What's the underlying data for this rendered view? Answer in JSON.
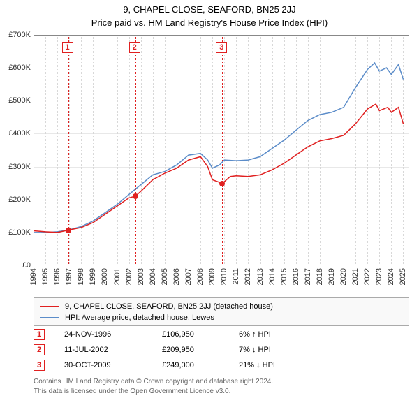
{
  "title": "9, CHAPEL CLOSE, SEAFORD, BN25 2JJ",
  "subtitle": "Price paid vs. HM Land Registry's House Price Index (HPI)",
  "chart": {
    "type": "line",
    "background_color": "#ffffff",
    "grid_color": "#e8e8e8",
    "grid_v_color": "#d8d8d8",
    "border_color": "#888888",
    "x": {
      "min": 1994,
      "max": 2025.5,
      "ticks": [
        1994,
        1995,
        1996,
        1997,
        1998,
        1999,
        2000,
        2001,
        2002,
        2003,
        2004,
        2005,
        2006,
        2007,
        2008,
        2009,
        2010,
        2011,
        2012,
        2013,
        2014,
        2015,
        2016,
        2017,
        2018,
        2019,
        2020,
        2021,
        2022,
        2023,
        2024,
        2025
      ]
    },
    "y": {
      "min": 0,
      "max": 700000,
      "ticks": [
        0,
        100000,
        200000,
        300000,
        400000,
        500000,
        600000,
        700000
      ],
      "labels": [
        "£0",
        "£100K",
        "£200K",
        "£300K",
        "£400K",
        "£500K",
        "£600K",
        "£700K"
      ],
      "label_fontsize": 11
    },
    "series_red": {
      "label": "9, CHAPEL CLOSE, SEAFORD, BN25 2JJ (detached house)",
      "color": "#e02020",
      "line_width": 1.5,
      "points": [
        [
          1994,
          105000
        ],
        [
          1995,
          102000
        ],
        [
          1996,
          100000
        ],
        [
          1996.9,
          106950
        ],
        [
          1998,
          115000
        ],
        [
          1999,
          130000
        ],
        [
          2000,
          155000
        ],
        [
          2001,
          180000
        ],
        [
          2002,
          205000
        ],
        [
          2002.53,
          209950
        ],
        [
          2003,
          225000
        ],
        [
          2004,
          260000
        ],
        [
          2005,
          280000
        ],
        [
          2006,
          295000
        ],
        [
          2007,
          320000
        ],
        [
          2008,
          330000
        ],
        [
          2008.6,
          300000
        ],
        [
          2009,
          260000
        ],
        [
          2009.83,
          249000
        ],
        [
          2010.5,
          270000
        ],
        [
          2011,
          272000
        ],
        [
          2012,
          270000
        ],
        [
          2013,
          275000
        ],
        [
          2014,
          290000
        ],
        [
          2015,
          310000
        ],
        [
          2016,
          335000
        ],
        [
          2017,
          360000
        ],
        [
          2018,
          378000
        ],
        [
          2019,
          385000
        ],
        [
          2020,
          395000
        ],
        [
          2021,
          430000
        ],
        [
          2022,
          475000
        ],
        [
          2022.7,
          490000
        ],
        [
          2023,
          470000
        ],
        [
          2023.7,
          480000
        ],
        [
          2024,
          465000
        ],
        [
          2024.6,
          480000
        ],
        [
          2025,
          430000
        ]
      ]
    },
    "series_blue": {
      "label": "HPI: Average price, detached house, Lewes",
      "color": "#5b8cc9",
      "line_width": 1.5,
      "points": [
        [
          1994,
          100000
        ],
        [
          1995,
          100000
        ],
        [
          1996,
          102000
        ],
        [
          1997,
          108000
        ],
        [
          1998,
          118000
        ],
        [
          1999,
          135000
        ],
        [
          2000,
          160000
        ],
        [
          2001,
          185000
        ],
        [
          2002,
          215000
        ],
        [
          2003,
          245000
        ],
        [
          2004,
          275000
        ],
        [
          2005,
          285000
        ],
        [
          2006,
          305000
        ],
        [
          2007,
          335000
        ],
        [
          2008,
          340000
        ],
        [
          2008.6,
          320000
        ],
        [
          2009,
          295000
        ],
        [
          2009.6,
          305000
        ],
        [
          2010,
          320000
        ],
        [
          2011,
          318000
        ],
        [
          2012,
          320000
        ],
        [
          2013,
          330000
        ],
        [
          2014,
          355000
        ],
        [
          2015,
          380000
        ],
        [
          2016,
          410000
        ],
        [
          2017,
          440000
        ],
        [
          2018,
          458000
        ],
        [
          2019,
          465000
        ],
        [
          2020,
          480000
        ],
        [
          2021,
          540000
        ],
        [
          2022,
          595000
        ],
        [
          2022.6,
          615000
        ],
        [
          2023,
          590000
        ],
        [
          2023.6,
          600000
        ],
        [
          2024,
          580000
        ],
        [
          2024.6,
          610000
        ],
        [
          2025,
          565000
        ]
      ]
    },
    "events": [
      {
        "idx": "1",
        "year": 1996.9,
        "value": 106950
      },
      {
        "idx": "2",
        "year": 2002.53,
        "value": 209950
      },
      {
        "idx": "3",
        "year": 2009.83,
        "value": 249000
      }
    ],
    "event_color": "#e02020",
    "event_box_fontsize": 11
  },
  "legend": {
    "border_color": "#aaaaaa",
    "bg_color": "#f9f9f9",
    "fontsize": 11
  },
  "footer_rows": [
    {
      "idx": "1",
      "date": "24-NOV-1996",
      "price": "£106,950",
      "pct": "6% ↑ HPI"
    },
    {
      "idx": "2",
      "date": "11-JUL-2002",
      "price": "£209,950",
      "pct": "7% ↓ HPI"
    },
    {
      "idx": "3",
      "date": "30-OCT-2009",
      "price": "£249,000",
      "pct": "21% ↓ HPI"
    }
  ],
  "license_line1": "Contains HM Land Registry data © Crown copyright and database right 2024.",
  "license_line2": "This data is licensed under the Open Government Licence v3.0."
}
